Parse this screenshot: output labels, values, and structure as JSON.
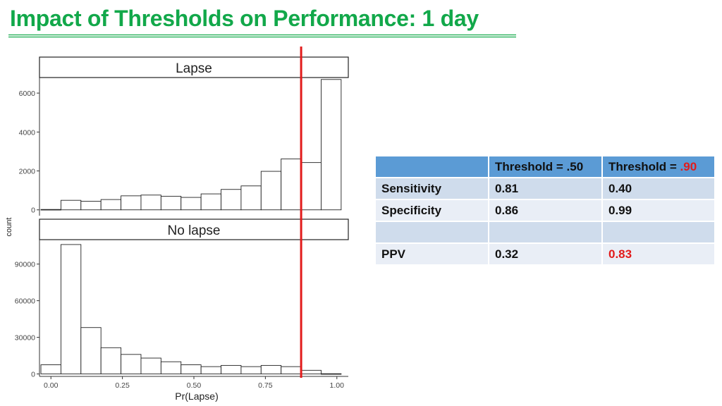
{
  "title": "Impact of Thresholds on Performance:  1 day",
  "colors": {
    "title": "#12a84a",
    "threshold_line": "#e21b1b",
    "table_header": "#5b9bd5",
    "table_row_a": "#cfdcec",
    "table_row_b": "#e9eef6",
    "highlight": "#e21b1b"
  },
  "chart_data": {
    "type": "bar",
    "subtype": "faceted-histogram",
    "xlabel": "Pr(Lapse)",
    "ylabel": "count",
    "xlim": [
      -0.04,
      1.04
    ],
    "x_ticks": [
      0.0,
      0.25,
      0.5,
      0.75,
      1.0
    ],
    "x_tick_labels": [
      "0.00",
      "0.25",
      "0.50",
      "0.75",
      "1.00"
    ],
    "bin_width": 0.07,
    "bin_centers": [
      0.0,
      0.07,
      0.14,
      0.21,
      0.28,
      0.35,
      0.42,
      0.49,
      0.56,
      0.63,
      0.7,
      0.77,
      0.84,
      0.91,
      0.98
    ],
    "threshold_line_x": 0.875,
    "grid": false,
    "facets": [
      {
        "label": "Lapse",
        "ylim": [
          -300,
          6800
        ],
        "y_ticks": [
          0,
          2000,
          4000,
          6000
        ],
        "y_tick_labels": [
          "0",
          "2000",
          "4000",
          "6000"
        ],
        "values": [
          20,
          490,
          440,
          530,
          720,
          760,
          700,
          640,
          820,
          1050,
          1230,
          1980,
          2620,
          2430,
          6700
        ]
      },
      {
        "label": "No lapse",
        "ylim": [
          -2000,
          110000
        ],
        "y_ticks": [
          0,
          30000,
          60000,
          90000
        ],
        "y_tick_labels": [
          "0",
          "30000",
          "60000",
          "90000"
        ],
        "values": [
          7500,
          106000,
          38000,
          21500,
          16000,
          13000,
          10000,
          7500,
          6000,
          7000,
          6000,
          7000,
          6000,
          3000,
          200
        ]
      }
    ]
  },
  "table": {
    "header": [
      "",
      "Threshold = .50",
      "Threshold = "
    ],
    "header_highlight": ".90",
    "rows": [
      {
        "label": "Sensitivity",
        "v50": "0.81",
        "v90": "0.40",
        "highlight": false
      },
      {
        "label": "Specificity",
        "v50": "0.86",
        "v90": "0.99",
        "highlight": false
      },
      {
        "label": "",
        "v50": "",
        "v90": "",
        "highlight": false
      },
      {
        "label": "PPV",
        "v50": "0.32",
        "v90": "0.83",
        "highlight": true
      }
    ]
  }
}
